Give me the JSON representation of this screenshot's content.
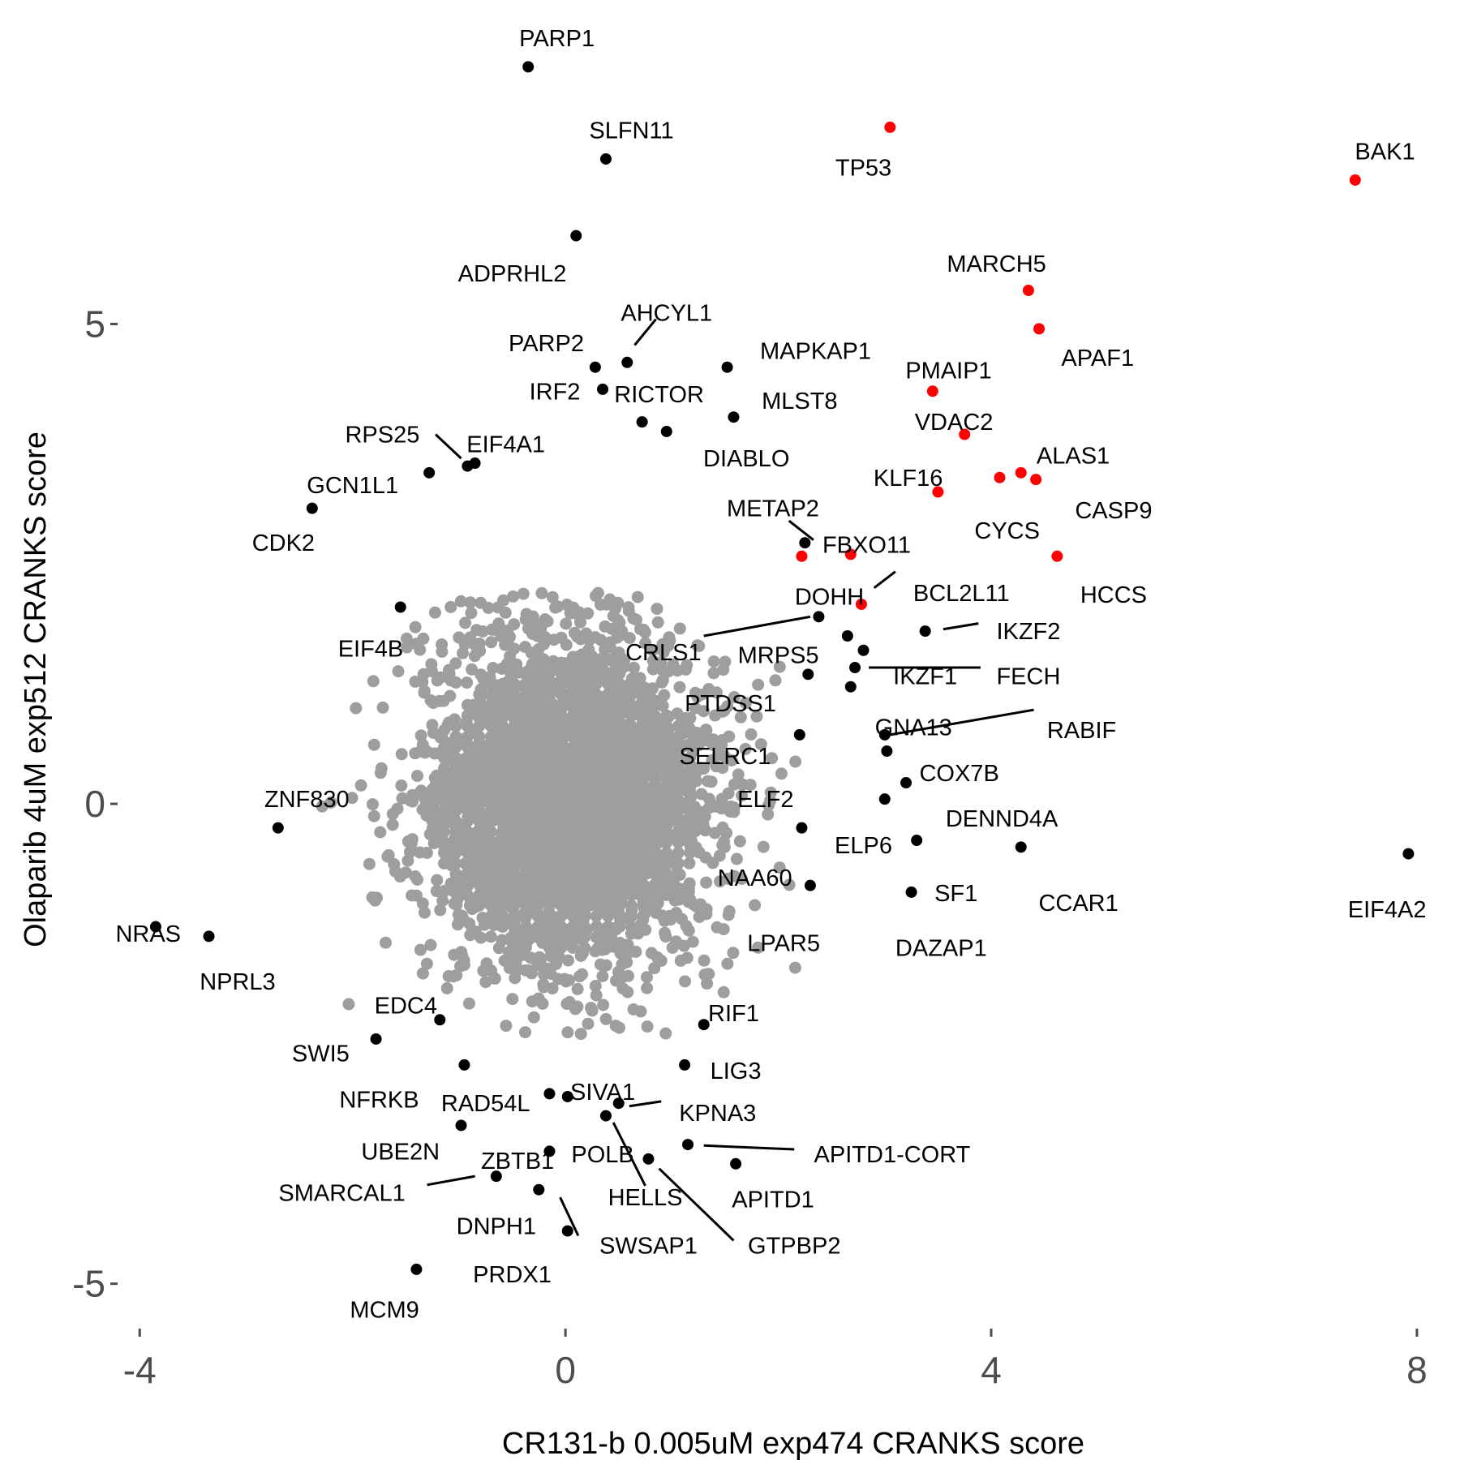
{
  "chart_data": {
    "type": "scatter",
    "title": "",
    "xlabel": "CR131-b 0.005uM exp474 CRANKS score",
    "ylabel": "Olaparib 4uM exp512 CRANKS score",
    "xlim": [
      -4.2,
      8.1
    ],
    "ylim": [
      -5.4,
      7.7
    ],
    "xticks": [
      {
        "value": -4,
        "label": "-4"
      },
      {
        "value": 0,
        "label": "0"
      },
      {
        "value": 4,
        "label": "4"
      },
      {
        "value": 8,
        "label": "8"
      }
    ],
    "yticks": [
      {
        "value": -5,
        "label": "-5"
      },
      {
        "value": 0,
        "label": "0"
      },
      {
        "value": 5,
        "label": "5"
      }
    ],
    "grid": false,
    "legend": "none",
    "colors": {
      "background": "#9e9e9e",
      "hit": "#000000",
      "highlight": "#ff0000"
    },
    "series": [
      {
        "color": "#ff0000",
        "points": [
          {
            "label": "TP53",
            "x": 3.05,
            "y": 7.05
          },
          {
            "label": "BAK1",
            "x": 7.42,
            "y": 6.5
          },
          {
            "label": "MARCH5",
            "x": 4.35,
            "y": 5.35
          },
          {
            "label": "APAF1",
            "x": 4.45,
            "y": 4.95
          },
          {
            "label": "PMAIP1",
            "x": 3.45,
            "y": 4.3
          },
          {
            "label": "VDAC2",
            "x": 3.75,
            "y": 3.85
          },
          {
            "label": "ALAS1",
            "x": 4.28,
            "y": 3.45
          },
          {
            "label": "CASP9",
            "x": 4.42,
            "y": 3.38
          },
          {
            "label": "KLF16",
            "x": 3.5,
            "y": 3.25
          },
          {
            "label": "CYCS",
            "x": 4.08,
            "y": 3.4
          },
          {
            "label": "HCCS",
            "x": 4.62,
            "y": 2.58
          },
          {
            "label": "FBXO11",
            "x": 2.68,
            "y": 2.6
          },
          {
            "label": "DOHH",
            "x": 2.22,
            "y": 2.58
          },
          {
            "label": "BCL2L11",
            "x": 2.78,
            "y": 2.08
          }
        ]
      },
      {
        "color": "#000000",
        "points": [
          {
            "label": "PARP1",
            "x": -0.35,
            "y": 7.68
          },
          {
            "label": "SLFN11",
            "x": 0.38,
            "y": 6.72
          },
          {
            "label": "ADPRHL2",
            "x": 0.1,
            "y": 5.92
          },
          {
            "label": "AHCYL1",
            "x": 0.58,
            "y": 4.6
          },
          {
            "label": "PARP2",
            "x": 0.28,
            "y": 4.55
          },
          {
            "label": "IRF2",
            "x": 0.35,
            "y": 4.32
          },
          {
            "label": "RICTOR",
            "x": 0.72,
            "y": 3.98
          },
          {
            "label": "MAPKAP1",
            "x": 1.52,
            "y": 4.55
          },
          {
            "label": "MLST8",
            "x": 1.58,
            "y": 4.03
          },
          {
            "label": "DIABLO",
            "x": 0.95,
            "y": 3.88
          },
          {
            "label": "RPS25",
            "x": -0.92,
            "y": 3.52
          },
          {
            "label": "EIF4A1",
            "x": -0.85,
            "y": 3.55
          },
          {
            "label": "GCN1L1",
            "x": -1.28,
            "y": 3.45
          },
          {
            "label": "CDK2",
            "x": -2.38,
            "y": 3.08
          },
          {
            "label": "METAP2",
            "x": 2.25,
            "y": 2.72
          },
          {
            "label": "EIF4B",
            "x": -1.55,
            "y": 2.05
          },
          {
            "label": "CRLS1",
            "x": 2.38,
            "y": 1.95
          },
          {
            "label": "MRPS5",
            "x": 2.65,
            "y": 1.75
          },
          {
            "label": "IKZF2",
            "x": 3.38,
            "y": 1.8
          },
          {
            "label": "IKZF1",
            "x": 2.8,
            "y": 1.6
          },
          {
            "label": "FECH",
            "x": 2.72,
            "y": 1.42
          },
          {
            "label": "PTDSS1",
            "x": 2.28,
            "y": 1.35
          },
          {
            "label": "GNA13",
            "x": 2.68,
            "y": 1.22
          },
          {
            "label": "RABIF",
            "x": 3.0,
            "y": 0.72
          },
          {
            "label": "SELRC1",
            "x": 2.2,
            "y": 0.72
          },
          {
            "label": "COX7B",
            "x": 3.02,
            "y": 0.55
          },
          {
            "label": "DENND4A",
            "x": 3.2,
            "y": 0.22
          },
          {
            "label": "ELF2",
            "x": 3.0,
            "y": 0.05
          },
          {
            "label": "ELP6",
            "x": 2.22,
            "y": -0.25
          },
          {
            "label": "SF1",
            "x": 3.3,
            "y": -0.38
          },
          {
            "label": "CCAR1",
            "x": 4.28,
            "y": -0.45
          },
          {
            "label": "EIF4A2",
            "x": 7.92,
            "y": -0.52
          },
          {
            "label": "DAZAP1",
            "x": 3.25,
            "y": -0.92
          },
          {
            "label": "LPAR5",
            "x": 2.3,
            "y": -0.85
          },
          {
            "label": "ZNF830",
            "x": -2.7,
            "y": -0.25
          },
          {
            "label": "NRAS",
            "x": -3.85,
            "y": -1.28
          },
          {
            "label": "NPRL3",
            "x": -3.35,
            "y": -1.38
          },
          {
            "label": "EDC4",
            "x": -1.18,
            "y": -2.25
          },
          {
            "label": "SWI5",
            "x": -1.78,
            "y": -2.45
          },
          {
            "label": "RIF1",
            "x": 1.3,
            "y": -2.3
          },
          {
            "label": "LIG3",
            "x": 1.12,
            "y": -2.72
          },
          {
            "label": "NFRKB",
            "x": -0.95,
            "y": -2.72
          },
          {
            "label": "RAD54L",
            "x": -0.15,
            "y": -3.02
          },
          {
            "label": "SIVA1",
            "x": 0.02,
            "y": -3.05
          },
          {
            "label": "KPNA3",
            "x": 0.5,
            "y": -3.12
          },
          {
            "label": "UBE2N",
            "x": -0.98,
            "y": -3.35
          },
          {
            "label": "POLB",
            "x": 0.38,
            "y": -3.25
          },
          {
            "label": "APITD1-CORT",
            "x": 1.15,
            "y": -3.55
          },
          {
            "label": "ZBTB1",
            "x": -0.15,
            "y": -3.62
          },
          {
            "label": "HELLS",
            "x": 0.78,
            "y": -3.7
          },
          {
            "label": "APITD1",
            "x": 1.6,
            "y": -3.75
          },
          {
            "label": "SMARCAL1",
            "x": -0.65,
            "y": -3.88
          },
          {
            "label": "DNPH1",
            "x": -0.25,
            "y": -4.02
          },
          {
            "label": "SWSAP1",
            "x": 0.02,
            "y": -4.45
          },
          {
            "label": "MCM9",
            "x": -1.4,
            "y": -4.85
          }
        ]
      }
    ],
    "labels": [
      {
        "text": "PARP1",
        "x": -0.08,
        "y": 7.98,
        "anchor": "middle"
      },
      {
        "text": "SLFN11",
        "x": 0.62,
        "y": 7.02,
        "anchor": "middle"
      },
      {
        "text": "TP53",
        "x": 2.8,
        "y": 6.63,
        "anchor": "middle"
      },
      {
        "text": "BAK1",
        "x": 7.7,
        "y": 6.8,
        "anchor": "middle"
      },
      {
        "text": "ADPRHL2",
        "x": -0.5,
        "y": 5.53,
        "anchor": "middle"
      },
      {
        "text": "MARCH5",
        "x": 4.05,
        "y": 5.63,
        "anchor": "middle"
      },
      {
        "text": "AHCYL1",
        "x": 0.95,
        "y": 5.12,
        "anchor": "middle"
      },
      {
        "text": "PARP2",
        "x": -0.18,
        "y": 4.8,
        "anchor": "middle"
      },
      {
        "text": "MAPKAP1",
        "x": 2.35,
        "y": 4.72,
        "anchor": "middle"
      },
      {
        "text": "APAF1",
        "x": 5.0,
        "y": 4.65,
        "anchor": "middle"
      },
      {
        "text": "PMAIP1",
        "x": 3.6,
        "y": 4.52,
        "anchor": "middle"
      },
      {
        "text": "IRF2",
        "x": -0.1,
        "y": 4.3,
        "anchor": "middle"
      },
      {
        "text": "RICTOR",
        "x": 0.88,
        "y": 4.27,
        "anchor": "middle"
      },
      {
        "text": "MLST8",
        "x": 2.2,
        "y": 4.2,
        "anchor": "middle"
      },
      {
        "text": "VDAC2",
        "x": 3.65,
        "y": 3.98,
        "anchor": "middle"
      },
      {
        "text": "RPS25",
        "x": -1.72,
        "y": 3.85,
        "anchor": "middle"
      },
      {
        "text": "EIF4A1",
        "x": -0.56,
        "y": 3.75,
        "anchor": "middle"
      },
      {
        "text": "DIABLO",
        "x": 1.7,
        "y": 3.6,
        "anchor": "middle"
      },
      {
        "text": "ALAS1",
        "x": 4.77,
        "y": 3.63,
        "anchor": "middle"
      },
      {
        "text": "GCN1L1",
        "x": -2.0,
        "y": 3.32,
        "anchor": "middle"
      },
      {
        "text": "KLF16",
        "x": 3.22,
        "y": 3.4,
        "anchor": "middle"
      },
      {
        "text": "METAP2",
        "x": 1.95,
        "y": 3.08,
        "anchor": "middle"
      },
      {
        "text": "CASP9",
        "x": 5.15,
        "y": 3.06,
        "anchor": "middle"
      },
      {
        "text": "CYCS",
        "x": 4.15,
        "y": 2.85,
        "anchor": "middle"
      },
      {
        "text": "CDK2",
        "x": -2.65,
        "y": 2.72,
        "anchor": "middle"
      },
      {
        "text": "FBXO11",
        "x": 2.83,
        "y": 2.7,
        "anchor": "middle"
      },
      {
        "text": "HCCS",
        "x": 5.15,
        "y": 2.18,
        "anchor": "middle"
      },
      {
        "text": "BCL2L11",
        "x": 3.72,
        "y": 2.2,
        "anchor": "middle"
      },
      {
        "text": "DOHH",
        "x": 2.48,
        "y": 2.16,
        "anchor": "middle"
      },
      {
        "text": "IKZF2",
        "x": 4.35,
        "y": 1.8,
        "anchor": "middle"
      },
      {
        "text": "EIF4B",
        "x": -1.83,
        "y": 1.62,
        "anchor": "middle"
      },
      {
        "text": "CRLS1",
        "x": 0.92,
        "y": 1.58,
        "anchor": "middle"
      },
      {
        "text": "MRPS5",
        "x": 2.0,
        "y": 1.55,
        "anchor": "middle"
      },
      {
        "text": "IKZF1",
        "x": 3.38,
        "y": 1.33,
        "anchor": "middle"
      },
      {
        "text": "FECH",
        "x": 4.35,
        "y": 1.33,
        "anchor": "middle"
      },
      {
        "text": "PTDSS1",
        "x": 1.55,
        "y": 1.05,
        "anchor": "middle"
      },
      {
        "text": "GNA13",
        "x": 3.27,
        "y": 0.8,
        "anchor": "middle"
      },
      {
        "text": "RABIF",
        "x": 4.85,
        "y": 0.77,
        "anchor": "middle"
      },
      {
        "text": "SELRC1",
        "x": 1.5,
        "y": 0.5,
        "anchor": "middle"
      },
      {
        "text": "COX7B",
        "x": 3.7,
        "y": 0.32,
        "anchor": "middle"
      },
      {
        "text": "ZNF830",
        "x": -2.43,
        "y": 0.05,
        "anchor": "middle"
      },
      {
        "text": "ELF2",
        "x": 1.88,
        "y": 0.05,
        "anchor": "middle"
      },
      {
        "text": "DENND4A",
        "x": 4.1,
        "y": -0.15,
        "anchor": "middle"
      },
      {
        "text": "ELP6",
        "x": 2.8,
        "y": -0.43,
        "anchor": "middle"
      },
      {
        "text": "NAA60",
        "x": 1.78,
        "y": -0.77,
        "anchor": "middle"
      },
      {
        "text": "SF1",
        "x": 3.67,
        "y": -0.93,
        "anchor": "middle"
      },
      {
        "text": "CCAR1",
        "x": 4.82,
        "y": -1.03,
        "anchor": "middle"
      },
      {
        "text": "EIF4A2",
        "x": 7.72,
        "y": -1.1,
        "anchor": "middle"
      },
      {
        "text": "NRAS",
        "x": -3.92,
        "y": -1.35,
        "anchor": "middle"
      },
      {
        "text": "LPAR5",
        "x": 2.05,
        "y": -1.45,
        "anchor": "middle"
      },
      {
        "text": "DAZAP1",
        "x": 3.53,
        "y": -1.5,
        "anchor": "middle"
      },
      {
        "text": "NPRL3",
        "x": -3.08,
        "y": -1.85,
        "anchor": "middle"
      },
      {
        "text": "EDC4",
        "x": -1.5,
        "y": -2.1,
        "anchor": "middle"
      },
      {
        "text": "RIF1",
        "x": 1.58,
        "y": -2.18,
        "anchor": "middle"
      },
      {
        "text": "SWI5",
        "x": -2.3,
        "y": -2.6,
        "anchor": "middle"
      },
      {
        "text": "LIG3",
        "x": 1.6,
        "y": -2.78,
        "anchor": "middle"
      },
      {
        "text": "SIVA1",
        "x": 0.35,
        "y": -3.0,
        "anchor": "middle"
      },
      {
        "text": "NFRKB",
        "x": -1.75,
        "y": -3.08,
        "anchor": "middle"
      },
      {
        "text": "RAD54L",
        "x": -0.75,
        "y": -3.12,
        "anchor": "middle"
      },
      {
        "text": "KPNA3",
        "x": 1.43,
        "y": -3.22,
        "anchor": "middle"
      },
      {
        "text": "UBE2N",
        "x": -1.55,
        "y": -3.62,
        "anchor": "middle"
      },
      {
        "text": "APITD1-CORT",
        "x": 3.07,
        "y": -3.65,
        "anchor": "middle"
      },
      {
        "text": "ZBTB1",
        "x": -0.45,
        "y": -3.72,
        "anchor": "middle"
      },
      {
        "text": "POLB",
        "x": 0.35,
        "y": -3.65,
        "anchor": "middle"
      },
      {
        "text": "HELLS",
        "x": 0.75,
        "y": -4.1,
        "anchor": "middle"
      },
      {
        "text": "APITD1",
        "x": 1.95,
        "y": -4.12,
        "anchor": "middle"
      },
      {
        "text": "SMARCAL1",
        "x": -2.1,
        "y": -4.05,
        "anchor": "middle"
      },
      {
        "text": "DNPH1",
        "x": -0.65,
        "y": -4.4,
        "anchor": "middle"
      },
      {
        "text": "GTPBP2",
        "x": 2.15,
        "y": -4.6,
        "anchor": "middle"
      },
      {
        "text": "SWSAP1",
        "x": 0.78,
        "y": -4.6,
        "anchor": "middle"
      },
      {
        "text": "PRDX1",
        "x": -0.5,
        "y": -4.9,
        "anchor": "middle"
      },
      {
        "text": "MCM9",
        "x": -1.7,
        "y": -5.27,
        "anchor": "middle"
      }
    ],
    "connectors": [
      {
        "from": [
          0.65,
          4.78
        ],
        "to": [
          0.85,
          5.05
        ]
      },
      {
        "from": [
          -1.22,
          3.85
        ],
        "to": [
          -0.98,
          3.6
        ]
      },
      {
        "from": [
          2.1,
          2.95
        ],
        "to": [
          2.33,
          2.75
        ]
      },
      {
        "from": [
          2.9,
          2.25
        ],
        "to": [
          3.1,
          2.42
        ]
      },
      {
        "from": [
          3.55,
          1.82
        ],
        "to": [
          3.88,
          1.88
        ]
      },
      {
        "from": [
          1.3,
          1.75
        ],
        "to": [
          2.3,
          1.95
        ]
      },
      {
        "from": [
          2.85,
          1.42
        ],
        "to": [
          3.9,
          1.42
        ]
      },
      {
        "from": [
          3.05,
          0.72
        ],
        "to": [
          4.4,
          0.98
        ]
      },
      {
        "from": [
          -0.85,
          -3.88
        ],
        "to": [
          -1.3,
          -3.97
        ]
      },
      {
        "from": [
          1.3,
          -3.56
        ],
        "to": [
          2.15,
          -3.6
        ]
      },
      {
        "from": [
          0.6,
          -3.15
        ],
        "to": [
          0.9,
          -3.1
        ]
      },
      {
        "from": [
          0.45,
          -3.32
        ],
        "to": [
          0.75,
          -3.98
        ]
      },
      {
        "from": [
          0.88,
          -3.8
        ],
        "to": [
          1.58,
          -4.55
        ]
      },
      {
        "from": [
          -0.05,
          -4.1
        ],
        "to": [
          0.12,
          -4.5
        ]
      }
    ]
  }
}
